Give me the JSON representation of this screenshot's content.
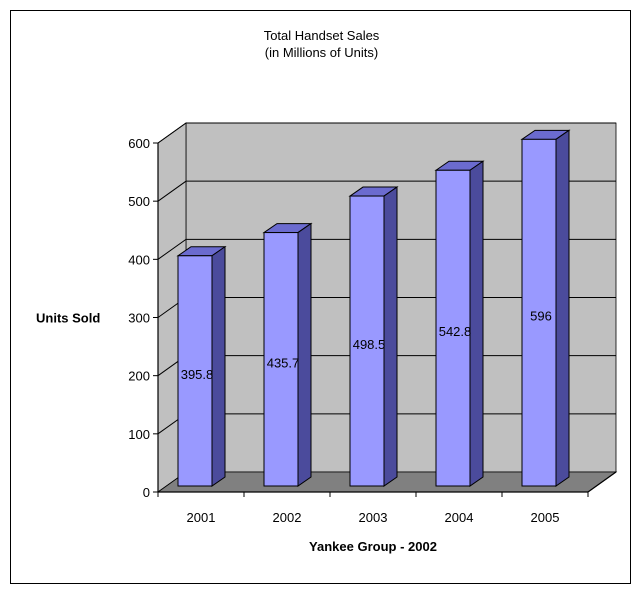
{
  "chart_data": {
    "type": "bar",
    "title": "Total Handset Sales",
    "subtitle": "(in Millions of Units)",
    "xlabel": "Yankee Group - 2002",
    "ylabel": "Units Sold",
    "categories": [
      "2001",
      "2002",
      "2003",
      "2004",
      "2005"
    ],
    "series": [
      {
        "values": [
          395.8,
          435.7,
          498.5,
          542.8,
          596
        ]
      }
    ],
    "data_labels": [
      "395.8",
      "435.7",
      "498.5",
      "542.8",
      "596"
    ],
    "yticks": [
      0,
      100,
      200,
      300,
      400,
      500,
      600
    ],
    "ylim": [
      0,
      600
    ],
    "grid": true,
    "legend": "none",
    "style": "3d-column",
    "colors": {
      "bar_front": "#9999ff",
      "bar_side": "#4b4b9c",
      "bar_top": "#6b6bcf",
      "wall": "#c0c0c0",
      "floor": "#808080",
      "gridline": "#000000"
    }
  }
}
